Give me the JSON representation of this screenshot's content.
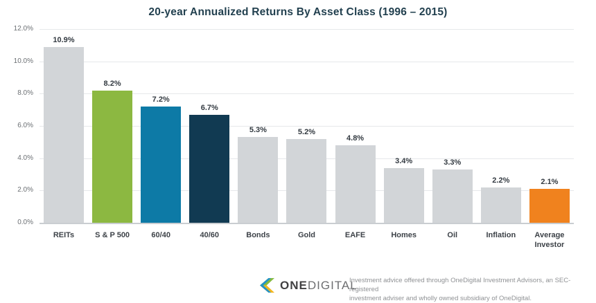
{
  "title": "20-year Annualized Returns By Asset Class (1996 – 2015)",
  "chart_data": {
    "type": "bar",
    "title": "20-year Annualized Returns By Asset Class (1996 – 2015)",
    "categories": [
      "REITs",
      "S & P 500",
      "60/40",
      "40/60",
      "Bonds",
      "Gold",
      "EAFE",
      "Homes",
      "Oil",
      "Inflation",
      "Average Investor"
    ],
    "values": [
      10.9,
      8.2,
      7.2,
      6.7,
      5.3,
      5.2,
      4.8,
      3.4,
      3.3,
      2.2,
      2.1
    ],
    "value_labels": [
      "10.9%",
      "8.2%",
      "7.2%",
      "6.7%",
      "5.3%",
      "5.2%",
      "4.8%",
      "3.4%",
      "3.3%",
      "2.2%",
      "2.1%"
    ],
    "bar_colors": [
      "#d2d5d8",
      "#8cb841",
      "#0d7aa6",
      "#113a52",
      "#d2d5d8",
      "#d2d5d8",
      "#d2d5d8",
      "#d2d5d8",
      "#d2d5d8",
      "#d2d5d8",
      "#f0821e"
    ],
    "xlabel": "",
    "ylabel": "",
    "ylim": [
      0,
      12
    ],
    "ytick_values": [
      0,
      2,
      4,
      6,
      8,
      10,
      12
    ],
    "ytick_labels": [
      "0.0%",
      "2.0%",
      "4.0%",
      "6.0%",
      "8.0%",
      "10.0%",
      "12.0%"
    ],
    "grid": true,
    "legend": "none"
  },
  "footer": {
    "logo_one": "ONE",
    "logo_digital": "DIGITAL",
    "disclaimer_line1": "Investment advice offered through OneDigital Investment Advisors, an SEC-registered",
    "disclaimer_line2": "investment adviser and wholly owned subsidiary of OneDigital."
  },
  "colors": {
    "title_text": "#22404f",
    "bar_gray": "#d2d5d8",
    "accent_green": "#8cb841",
    "accent_teal": "#0d7aa6",
    "accent_navy": "#113a52",
    "accent_orange": "#f0821e",
    "gridline": "#e6e8ea"
  }
}
